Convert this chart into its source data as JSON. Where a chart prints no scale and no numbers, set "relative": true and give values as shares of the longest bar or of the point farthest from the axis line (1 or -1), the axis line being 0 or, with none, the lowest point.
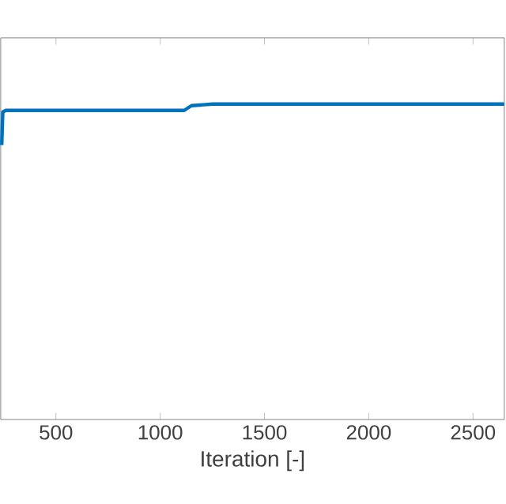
{
  "chart_data": {
    "type": "line",
    "xlabel": "Iteration [-]",
    "relative": true,
    "xlim": [
      235,
      2650
    ],
    "xticks": [
      500,
      1000,
      1500,
      2000,
      2500
    ],
    "series": [
      {
        "color": "#0072bd",
        "x": [
          240,
          245,
          260,
          1115,
          1150,
          1250,
          2650
        ],
        "values": [
          0.87,
          0.975,
          0.98,
          0.98,
          0.995,
          1,
          1
        ]
      }
    ],
    "grid": false,
    "marker": "none",
    "line_style": "solid",
    "tick_labels": "x"
  }
}
